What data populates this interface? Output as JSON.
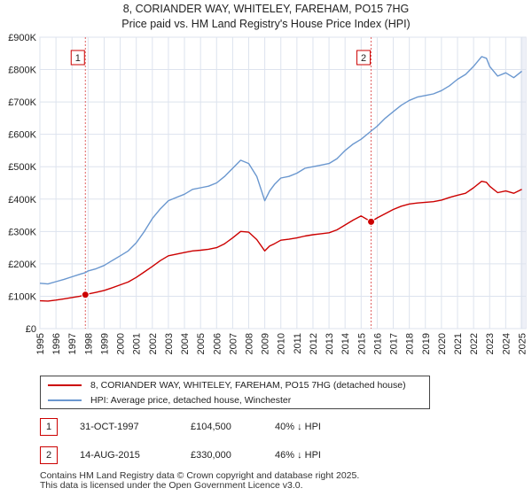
{
  "chart_data": {
    "type": "line",
    "title": "8, CORIANDER WAY, WHITELEY, FAREHAM, PO15 7HG",
    "subtitle": "Price paid vs. HM Land Registry's House Price Index (HPI)",
    "xlim": [
      1995,
      2025.25
    ],
    "ylim": [
      0,
      900000
    ],
    "x_ticks": [
      "1995",
      "1996",
      "1997",
      "1998",
      "1999",
      "2000",
      "2001",
      "2002",
      "2003",
      "2004",
      "2005",
      "2006",
      "2007",
      "2008",
      "2009",
      "2010",
      "2011",
      "2012",
      "2013",
      "2014",
      "2015",
      "2016",
      "2017",
      "2018",
      "2019",
      "2020",
      "2021",
      "2022",
      "2023",
      "2024",
      "2025"
    ],
    "y_ticks": [
      {
        "value": 0,
        "label": "£0"
      },
      {
        "value": 100000,
        "label": "£100K"
      },
      {
        "value": 200000,
        "label": "£200K"
      },
      {
        "value": 300000,
        "label": "£300K"
      },
      {
        "value": 400000,
        "label": "£400K"
      },
      {
        "value": 500000,
        "label": "£500K"
      },
      {
        "value": 600000,
        "label": "£600K"
      },
      {
        "value": 700000,
        "label": "£700K"
      },
      {
        "value": 800000,
        "label": "£800K"
      },
      {
        "value": 900000,
        "label": "£900K"
      }
    ],
    "series": [
      {
        "name": "HPI: Average price, detached house, Winchester",
        "color": "#6a97cf",
        "x": [
          1995,
          1995.5,
          1996,
          1996.5,
          1997,
          1997.5,
          1997.83,
          1998,
          1998.5,
          1999,
          1999.5,
          2000,
          2000.5,
          2001,
          2001.5,
          2002,
          2002.5,
          2003,
          2003.5,
          2004,
          2004.5,
          2005,
          2005.5,
          2006,
          2006.5,
          2007,
          2007.5,
          2008,
          2008.5,
          2009,
          2009.3,
          2009.6,
          2010,
          2010.5,
          2011,
          2011.5,
          2012,
          2012.5,
          2013,
          2013.5,
          2014,
          2014.5,
          2015,
          2015.62,
          2016,
          2016.5,
          2017,
          2017.5,
          2018,
          2018.5,
          2019,
          2019.5,
          2020,
          2020.5,
          2021,
          2021.5,
          2022,
          2022.5,
          2022.8,
          2023,
          2023.5,
          2024,
          2024.5,
          2025
        ],
        "values": [
          140000,
          138000,
          145000,
          152000,
          160000,
          168000,
          173000,
          178000,
          185000,
          195000,
          210000,
          225000,
          240000,
          265000,
          300000,
          340000,
          370000,
          395000,
          405000,
          415000,
          430000,
          435000,
          440000,
          450000,
          470000,
          495000,
          520000,
          510000,
          470000,
          395000,
          425000,
          445000,
          465000,
          470000,
          480000,
          495000,
          500000,
          505000,
          510000,
          525000,
          550000,
          570000,
          585000,
          610000,
          625000,
          650000,
          670000,
          690000,
          705000,
          715000,
          720000,
          725000,
          735000,
          750000,
          770000,
          785000,
          810000,
          840000,
          835000,
          810000,
          780000,
          790000,
          775000,
          795000
        ]
      },
      {
        "name": "8, CORIANDER WAY, WHITELEY, FAREHAM, PO15 7HG (detached house)",
        "color": "#cc0000",
        "x": [
          1995,
          1995.5,
          1996,
          1996.5,
          1997,
          1997.5,
          1997.83,
          1998,
          1998.5,
          1999,
          1999.5,
          2000,
          2000.5,
          2001,
          2001.5,
          2002,
          2002.5,
          2003,
          2003.5,
          2004,
          2004.5,
          2005,
          2005.5,
          2006,
          2006.5,
          2007,
          2007.5,
          2008,
          2008.5,
          2009,
          2009.3,
          2009.6,
          2010,
          2010.5,
          2011,
          2011.5,
          2012,
          2012.5,
          2013,
          2013.5,
          2014,
          2014.5,
          2015,
          2015.62,
          2016,
          2016.5,
          2017,
          2017.5,
          2018,
          2018.5,
          2019,
          2019.5,
          2020,
          2020.5,
          2021,
          2021.5,
          2022,
          2022.5,
          2022.8,
          2023,
          2023.5,
          2024,
          2024.5,
          2025
        ],
        "values": [
          86000,
          85000,
          88000,
          92000,
          96000,
          100000,
          104500,
          107000,
          112000,
          118000,
          126000,
          135000,
          144000,
          158000,
          175000,
          192000,
          210000,
          225000,
          230000,
          235000,
          240000,
          242000,
          245000,
          250000,
          262000,
          280000,
          300000,
          298000,
          275000,
          240000,
          255000,
          262000,
          273000,
          276000,
          280000,
          286000,
          290000,
          293000,
          296000,
          305000,
          320000,
          335000,
          348000,
          330000,
          342000,
          355000,
          368000,
          378000,
          385000,
          388000,
          390000,
          392000,
          397000,
          405000,
          412000,
          418000,
          435000,
          455000,
          452000,
          440000,
          420000,
          425000,
          418000,
          430000
        ]
      }
    ],
    "sales": [
      {
        "marker": "1",
        "date": "31-OCT-1997",
        "x": 1997.83,
        "price": 104500,
        "price_label": "£104,500",
        "hpi_label": "40% ↓ HPI"
      },
      {
        "marker": "2",
        "date": "14-AUG-2015",
        "x": 2015.62,
        "price": 330000,
        "price_label": "£330,000",
        "hpi_label": "46% ↓ HPI"
      }
    ],
    "shaded_region": [
      2024.9,
      2025.25
    ],
    "grid": true
  },
  "colors": {
    "grid": "#dde3ee",
    "plot_bg": "#ffffff",
    "vline": "#e06060",
    "forecast": "#eef0f7"
  },
  "footer": {
    "line1": "Contains HM Land Registry data © Crown copyright and database right 2025.",
    "line2": "This data is licensed under the Open Government Licence v3.0."
  }
}
